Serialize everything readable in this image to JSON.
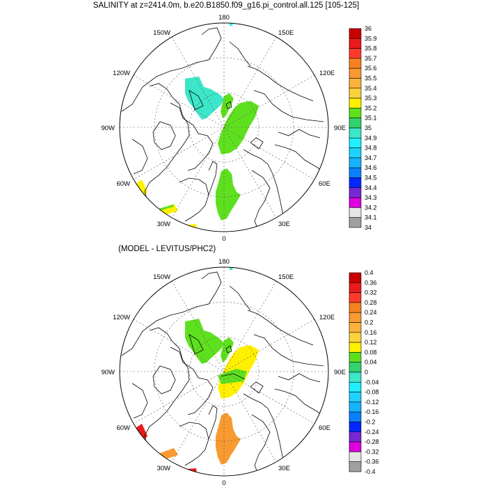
{
  "title_top": "SALINITY at z=2414.0m, b.e20.B1850.f09_g16.pi_control.all.125 [105-125]",
  "title_bottom": "(MODEL - LEVITUS/PHC2)",
  "lon_labels": {
    "l180": "180",
    "l150w": "150W",
    "l150e": "150E",
    "l120w": "120W",
    "l120e": "120E",
    "l90w": "90W",
    "l90e": "90E",
    "l60w": "60W",
    "l60e": "60E",
    "l30w": "30W",
    "l30e": "30E",
    "l0": "0"
  },
  "colorbar_top": {
    "labels": [
      "36",
      "35.9",
      "35.8",
      "35.7",
      "35.6",
      "35.5",
      "35.4",
      "35.3",
      "35.2",
      "35.1",
      "35",
      "34.9",
      "34.8",
      "34.7",
      "34.6",
      "34.5",
      "34.4",
      "34.3",
      "34.2",
      "34.1",
      "34"
    ],
    "colors": [
      "#c80000",
      "#ea1a1a",
      "#ff3a2a",
      "#f5821e",
      "#f89a30",
      "#fab23c",
      "#fcd23c",
      "#fff000",
      "#5ee01e",
      "#32d26e",
      "#3ce6c8",
      "#1ef0ff",
      "#1ed2ff",
      "#14b4ff",
      "#0a80ff",
      "#0028ff",
      "#7828d2",
      "#dc00dc",
      "#e6e6e6",
      "#a0a0a0"
    ]
  },
  "colorbar_bottom": {
    "labels": [
      "0.4",
      "0.36",
      "0.32",
      "0.28",
      "0.24",
      "0.2",
      "0.16",
      "0.12",
      "0.08",
      "0.04",
      "0",
      "-0.04",
      "-0.08",
      "-0.12",
      "-0.16",
      "-0.2",
      "-0.24",
      "-0.28",
      "-0.32",
      "-0.36",
      "-0.4"
    ],
    "colors": [
      "#c80000",
      "#ea1a1a",
      "#ff3a2a",
      "#f5821e",
      "#f89a30",
      "#fab23c",
      "#fcd23c",
      "#fff000",
      "#5ee01e",
      "#32d26e",
      "#3ce6c8",
      "#1ef0ff",
      "#1ed2ff",
      "#14b4ff",
      "#0a80ff",
      "#0028ff",
      "#7828d2",
      "#dc00dc",
      "#e6e6e6",
      "#a0a0a0"
    ]
  }
}
